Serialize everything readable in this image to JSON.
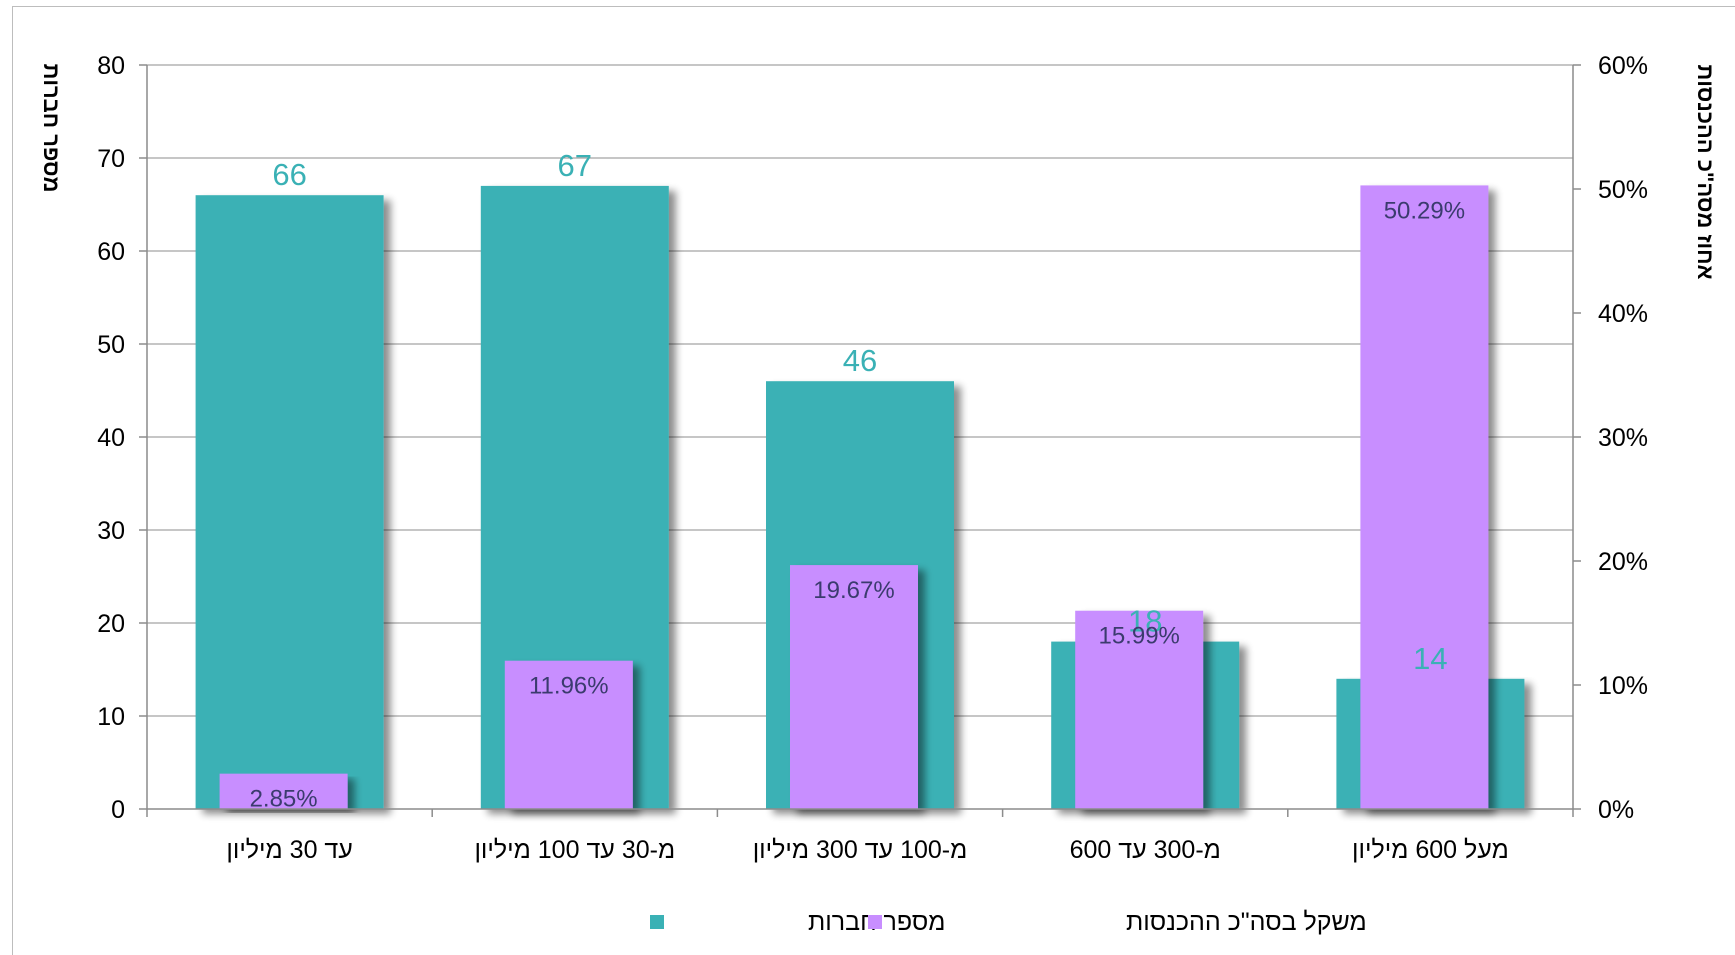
{
  "chart_data": {
    "type": "bar",
    "categories": [
      "עד 30 מיליון",
      "מ-30 עד 100 מיליון",
      "מ-100 עד 300 מיליון",
      "מ-300 עד 600",
      "מעל 600 מיליון"
    ],
    "series": [
      {
        "name": "מספר חברות",
        "axis": "left",
        "values": [
          66,
          67,
          46,
          18,
          14
        ],
        "labels": [
          "66",
          "67",
          "46",
          "18",
          "14"
        ],
        "color": "#3AB1B5",
        "label_color": "#3AB1B5"
      },
      {
        "name": "משקל בסה\"כ ההכנסות",
        "axis": "right",
        "values": [
          2.85,
          11.96,
          19.67,
          15.99,
          50.29
        ],
        "labels": [
          "2.85%",
          "11.96%",
          "19.67%",
          "15.99%",
          "50.29%"
        ],
        "color": "#C88EFF",
        "label_color": "#3B3B6E"
      }
    ],
    "ylabel": "מספר חברות",
    "y2label": "אחוז מסה\"כ ההכנסות",
    "ylim": [
      0,
      80
    ],
    "y2lim": [
      0,
      60
    ],
    "y_ticks": [
      "0",
      "10",
      "20",
      "30",
      "40",
      "50",
      "60",
      "70",
      "80"
    ],
    "y2_ticks": [
      "0%",
      "10%",
      "20%",
      "30%",
      "40%",
      "50%",
      "60%"
    ],
    "grid": true,
    "legend_position": "bottom"
  }
}
